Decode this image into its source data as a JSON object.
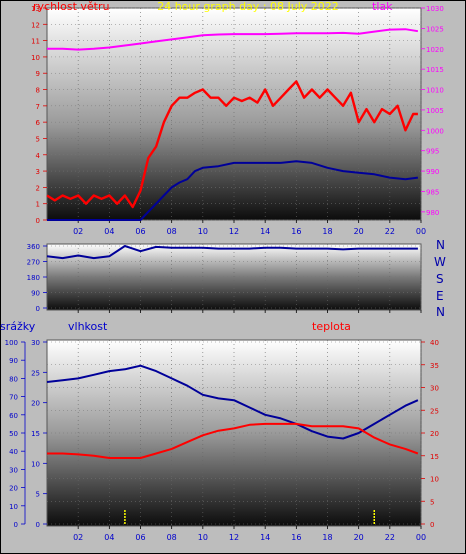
{
  "title": "24 hour graph day : 08 July 2022",
  "colors": {
    "background": "#bdbdbd",
    "red": "#ff0000",
    "blue": "#000099",
    "magenta": "#ff00ff",
    "yellow": "#ffff00",
    "tick_blue": "#0000cc",
    "tick_red": "#e00000"
  },
  "chart_data": [
    {
      "id": "wind_pressure",
      "type": "line",
      "title": "24 hour graph day : 08 July 2022",
      "left_axis_label": "rychlost větru",
      "right_axis_label": "tlak",
      "x_ticks": [
        "02",
        "04",
        "06",
        "08",
        "10",
        "12",
        "14",
        "16",
        "18",
        "20",
        "22",
        "00"
      ],
      "x_range": [
        0,
        24
      ],
      "left_ylim": [
        0,
        13
      ],
      "left_ticks": [
        "0",
        "1",
        "2",
        "3",
        "4",
        "5",
        "6",
        "7",
        "8",
        "9",
        "10",
        "11",
        "12",
        "13"
      ],
      "right_ylim": [
        978,
        1030
      ],
      "right_ticks": [
        "980",
        "985",
        "990",
        "995",
        "1000",
        "1005",
        "1010",
        "1015",
        "1020",
        "1025",
        "1030"
      ],
      "series": [
        {
          "role": "pressure",
          "axis": "right",
          "color": "#ff00ff",
          "x": [
            0,
            1,
            2,
            3,
            4,
            5,
            6,
            7,
            8,
            9,
            10,
            11,
            12,
            13,
            14,
            15,
            16,
            17,
            18,
            19,
            20,
            21,
            22,
            23,
            23.8
          ],
          "y": [
            1020,
            1020,
            1019.8,
            1020,
            1020.3,
            1020.8,
            1021.3,
            1021.8,
            1022.3,
            1022.8,
            1023.3,
            1023.5,
            1023.6,
            1023.6,
            1023.6,
            1023.7,
            1023.8,
            1023.8,
            1023.8,
            1023.9,
            1023.7,
            1024.2,
            1024.7,
            1024.8,
            1024.3
          ]
        },
        {
          "role": "wind_avg",
          "axis": "left",
          "color": "#000099",
          "x": [
            0,
            1,
            2,
            3,
            4,
            5,
            5.5,
            6,
            6.5,
            7,
            7.5,
            8,
            8.5,
            9,
            9.5,
            10,
            11,
            12,
            13,
            14,
            15,
            16,
            17,
            18,
            19,
            20,
            21,
            22,
            23,
            23.8
          ],
          "y": [
            0,
            0,
            0,
            0,
            0,
            0,
            0,
            0,
            0.5,
            1,
            1.5,
            2,
            2.3,
            2.5,
            3,
            3.2,
            3.3,
            3.5,
            3.5,
            3.5,
            3.5,
            3.6,
            3.5,
            3.2,
            3,
            2.9,
            2.8,
            2.6,
            2.5,
            2.6
          ]
        },
        {
          "role": "wind_gust",
          "axis": "left",
          "color": "#ff0000",
          "x": [
            0,
            0.5,
            1,
            1.5,
            2,
            2.5,
            3,
            3.5,
            4,
            4.5,
            5,
            5.5,
            6,
            6.5,
            7,
            7.5,
            8,
            8.5,
            9,
            9.5,
            10,
            10.5,
            11,
            11.5,
            12,
            12.5,
            13,
            13.5,
            14,
            14.5,
            15,
            15.5,
            16,
            16.5,
            17,
            17.5,
            18,
            18.5,
            19,
            19.5,
            20,
            20.5,
            21,
            21.5,
            22,
            22.5,
            23,
            23.5,
            23.8
          ],
          "y": [
            1.5,
            1.2,
            1.5,
            1.3,
            1.5,
            1,
            1.5,
            1.3,
            1.5,
            1,
            1.5,
            0.8,
            1.8,
            3.8,
            4.5,
            6,
            7,
            7.5,
            7.5,
            7.8,
            8,
            7.5,
            7.5,
            7,
            7.5,
            7.3,
            7.5,
            7.2,
            8,
            7,
            7.5,
            8,
            8.5,
            7.5,
            8,
            7.5,
            8,
            7.5,
            7,
            7.8,
            6,
            6.8,
            6,
            6.8,
            6.5,
            7,
            5.5,
            6.5,
            6.5
          ]
        }
      ]
    },
    {
      "id": "wind_direction",
      "type": "line",
      "left_ticks": [
        "0",
        "90",
        "180",
        "270",
        "360"
      ],
      "ylim": [
        0,
        360
      ],
      "right_labels": [
        "N",
        "W",
        "S",
        "E",
        "N"
      ],
      "series": [
        {
          "role": "direction",
          "color": "#000099",
          "x": [
            0,
            1,
            2,
            3,
            4,
            5,
            6,
            7,
            8,
            9,
            10,
            11,
            12,
            13,
            14,
            15,
            16,
            17,
            18,
            19,
            20,
            21,
            22,
            23,
            23.8
          ],
          "y": [
            300,
            290,
            305,
            290,
            300,
            360,
            330,
            355,
            350,
            350,
            350,
            345,
            345,
            345,
            350,
            350,
            345,
            345,
            345,
            340,
            345,
            345,
            345,
            345,
            345
          ]
        }
      ]
    },
    {
      "id": "humidity_temperature",
      "type": "line",
      "precip_label": "srážky",
      "humidity_label": "vlhkost",
      "temp_label": "teplota",
      "precip_ticks": [
        "0",
        "10",
        "20",
        "30",
        "40",
        "50",
        "60",
        "70",
        "80",
        "90",
        "100"
      ],
      "precip_ylim": [
        0,
        100
      ],
      "hum_ticks": [
        "0",
        "5",
        "10",
        "15",
        "20",
        "25",
        "30"
      ],
      "hum_ylim": [
        0,
        30
      ],
      "temp_ticks": [
        "0",
        "5",
        "10",
        "15",
        "20",
        "25",
        "30",
        "35",
        "40"
      ],
      "temp_ylim": [
        0,
        40
      ],
      "series": [
        {
          "role": "humidity",
          "axis": "left",
          "color": "#000099",
          "x": [
            0,
            1,
            2,
            3,
            4,
            5,
            6,
            7,
            8,
            9,
            10,
            11,
            12,
            13,
            14,
            15,
            16,
            17,
            18,
            19,
            20,
            21,
            22,
            23,
            23.8
          ],
          "y": [
            78,
            79,
            80,
            82,
            84,
            85,
            87,
            84,
            80,
            76,
            71,
            69,
            68,
            64,
            60,
            58,
            55,
            51,
            48,
            47,
            50,
            55,
            60,
            65,
            68
          ]
        },
        {
          "role": "temperature",
          "axis": "right",
          "color": "#ff0000",
          "x": [
            0,
            1,
            2,
            3,
            4,
            5,
            6,
            7,
            8,
            9,
            10,
            11,
            12,
            13,
            14,
            15,
            16,
            17,
            18,
            19,
            20,
            21,
            22,
            23,
            23.8
          ],
          "y": [
            15.5,
            15.5,
            15.3,
            15,
            14.5,
            14.5,
            14.5,
            15.5,
            16.5,
            18,
            19.5,
            20.5,
            21,
            21.8,
            22,
            22,
            22,
            21.5,
            21.5,
            21.5,
            21,
            19,
            17.5,
            16.5,
            15.5
          ]
        },
        {
          "role": "precipitation",
          "axis": "precip",
          "color": "#ffff00",
          "x": [
            5,
            21
          ],
          "y": [
            8,
            8
          ]
        }
      ]
    }
  ]
}
